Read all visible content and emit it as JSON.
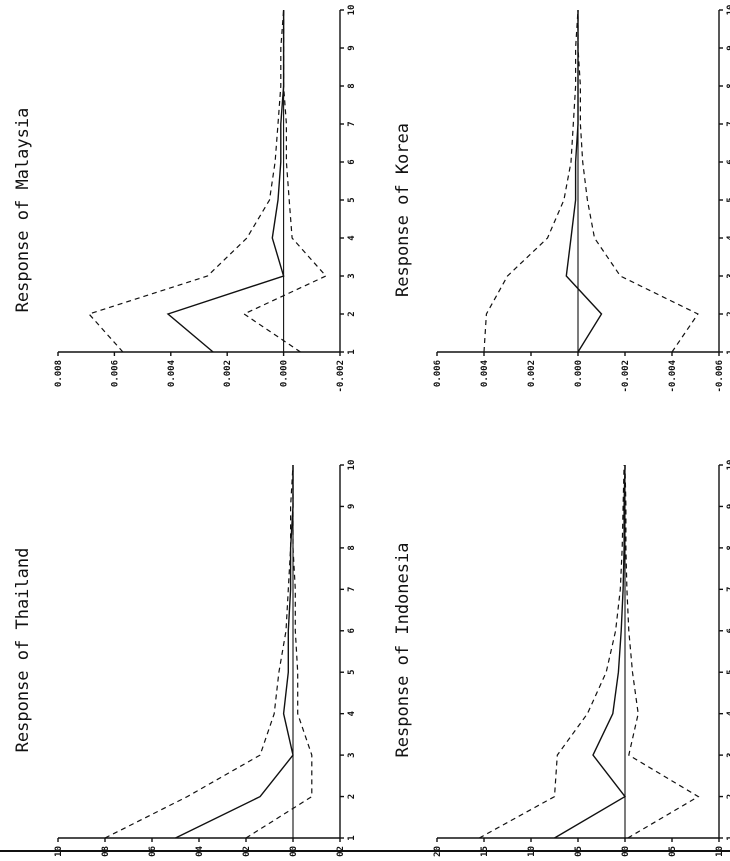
{
  "chart_data": [
    {
      "type": "line",
      "title": "Response of Thailand",
      "x": [
        1,
        2,
        3,
        4,
        5,
        6,
        7,
        8,
        9,
        10
      ],
      "ylim": [
        -0.002,
        0.01
      ],
      "yticks": [
        "0.010",
        "0.008",
        "0.006",
        "0.004",
        "0.002",
        "0.000",
        "-0.002"
      ],
      "series": [
        {
          "style": "solid",
          "values": [
            0.005,
            0.0014,
            0.0,
            0.0004,
            0.0002,
            0.0002,
            0.0001,
            0.0001,
            0.0,
            0.0
          ]
        },
        {
          "style": "dashed",
          "values": [
            0.008,
            0.0045,
            0.0014,
            0.0008,
            0.0006,
            0.0003,
            0.0002,
            0.0001,
            0.0001,
            0.0
          ]
        },
        {
          "style": "dashed",
          "values": [
            0.002,
            -0.0008,
            -0.0008,
            -0.0002,
            -0.0002,
            -0.0001,
            -0.0001,
            0.0,
            0.0,
            0.0
          ]
        }
      ]
    },
    {
      "type": "line",
      "title": "Response of Malaysia",
      "x": [
        1,
        2,
        3,
        4,
        5,
        6,
        7,
        8,
        9,
        10
      ],
      "ylim": [
        -0.002,
        0.008
      ],
      "yticks": [
        "0.008",
        "0.006",
        "0.004",
        "0.002",
        "0.000",
        "-0.002"
      ],
      "series": [
        {
          "style": "solid",
          "values": [
            0.0025,
            0.0041,
            0.0,
            0.0004,
            0.0002,
            0.0001,
            0.0001,
            0.0,
            0.0,
            0.0
          ]
        },
        {
          "style": "dashed",
          "values": [
            0.0057,
            0.0069,
            0.0027,
            0.0013,
            0.0005,
            0.0003,
            0.0002,
            0.0001,
            0.0001,
            0.0
          ]
        },
        {
          "style": "dashed",
          "values": [
            -0.0006,
            0.0014,
            -0.0015,
            -0.0003,
            -0.0002,
            -0.0001,
            -0.0001,
            0.0,
            0.0,
            0.0
          ]
        }
      ]
    },
    {
      "type": "line",
      "title": "Response of Indonesia",
      "x": [
        1,
        2,
        3,
        4,
        5,
        6,
        7,
        8,
        9,
        10
      ],
      "ylim": [
        -0.01,
        0.02
      ],
      "yticks": [
        "0.020",
        "0.015",
        "0.010",
        "0.005",
        "0.000",
        "-0.005",
        "-0.010"
      ],
      "series": [
        {
          "style": "solid",
          "values": [
            0.0075,
            0.0,
            0.0034,
            0.0013,
            0.0007,
            0.0004,
            0.0002,
            0.0001,
            0.0001,
            0.0
          ]
        },
        {
          "style": "dashed",
          "values": [
            0.0155,
            0.0075,
            0.0072,
            0.004,
            0.002,
            0.001,
            0.0005,
            0.0003,
            0.0002,
            0.0001
          ]
        },
        {
          "style": "dashed",
          "values": [
            -0.0003,
            -0.0078,
            -0.0004,
            -0.0014,
            -0.0008,
            -0.0004,
            -0.0002,
            -0.0001,
            -0.0001,
            0.0
          ]
        }
      ]
    },
    {
      "type": "line",
      "title": "Response of Korea",
      "x": [
        1,
        2,
        3,
        4,
        5,
        6,
        7,
        8,
        9,
        10
      ],
      "ylim": [
        -0.006,
        0.006
      ],
      "yticks": [
        "0.006",
        "0.004",
        "0.002",
        "0.000",
        "-0.002",
        "-0.004",
        "-0.006"
      ],
      "series": [
        {
          "style": "solid",
          "values": [
            0.0,
            -0.001,
            0.0005,
            0.0003,
            0.0001,
            0.0001,
            0.0,
            0.0,
            0.0,
            0.0
          ]
        },
        {
          "style": "dashed",
          "values": [
            0.004,
            0.0039,
            0.003,
            0.0013,
            0.0006,
            0.0003,
            0.0002,
            0.0001,
            0.0001,
            0.0
          ]
        },
        {
          "style": "dashed",
          "values": [
            -0.004,
            -0.0051,
            -0.0018,
            -0.0007,
            -0.0004,
            -0.0002,
            -0.0001,
            -0.0001,
            0.0,
            0.0
          ]
        }
      ]
    }
  ]
}
